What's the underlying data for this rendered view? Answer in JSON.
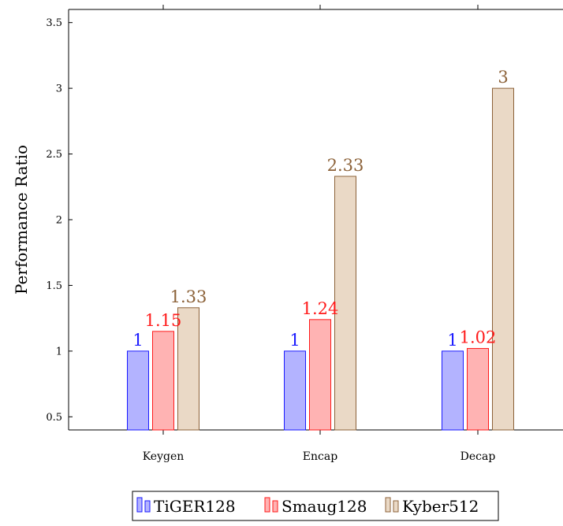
{
  "chart_data": {
    "type": "bar",
    "categories": [
      "Keygen",
      "Encap",
      "Decap"
    ],
    "series": [
      {
        "name": "TiGER128",
        "values": [
          1,
          1,
          1
        ],
        "labels": [
          "1",
          "1",
          "1"
        ],
        "fill": "#b3b3ff",
        "stroke": "#1a1aff",
        "text": "#1a1aff"
      },
      {
        "name": "Smaug128",
        "values": [
          1.15,
          1.24,
          1.02
        ],
        "labels": [
          "1.15",
          "1.24",
          "1.02"
        ],
        "fill": "#ffb3b3",
        "stroke": "#ff1a1a",
        "text": "#ff1a1a"
      },
      {
        "name": "Kyber512",
        "values": [
          1.33,
          2.33,
          3
        ],
        "labels": [
          "1.33",
          "2.33",
          "3"
        ],
        "fill": "#ead9c6",
        "stroke": "#8c6239",
        "text": "#8c6239"
      }
    ],
    "title": "",
    "xlabel": "",
    "ylabel": "Performance Ratio",
    "ylim": [
      0.4,
      3.6
    ],
    "yticks": [
      0.5,
      1,
      1.5,
      2,
      2.5,
      3,
      3.5
    ],
    "ytick_labels": [
      "0.5",
      "1",
      "1.5",
      "2",
      "2.5",
      "3",
      "3.5"
    ],
    "grid": false,
    "legend_position": "bottom-center"
  }
}
